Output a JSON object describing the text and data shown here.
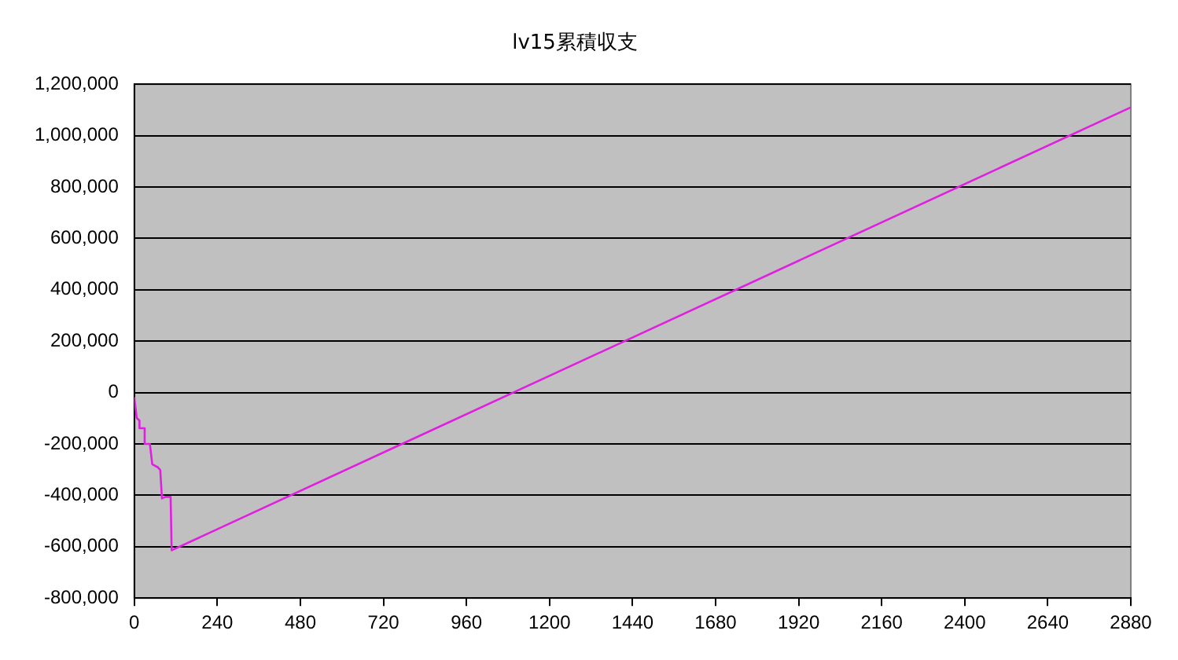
{
  "chart_data": {
    "type": "line",
    "title": "lv15累積収支",
    "series": [
      {
        "color": "#e020e0",
        "x": [
          0,
          7,
          15,
          15,
          30,
          30,
          45,
          52,
          68,
          75,
          80,
          90,
          105,
          108,
          2880
        ],
        "values": [
          -18000,
          -99000,
          -109000,
          -139000,
          -139000,
          -200000,
          -200000,
          -279000,
          -291000,
          -301000,
          -412000,
          -406000,
          -406000,
          -614000,
          1110000
        ]
      }
    ],
    "xlim": [
      0,
      2880
    ],
    "xticks": [
      0,
      240,
      480,
      720,
      960,
      1200,
      1440,
      1680,
      1920,
      2160,
      2400,
      2640,
      2880
    ],
    "ylim": [
      -800000,
      1200000
    ],
    "yticks": [
      {
        "value": -800000,
        "label": "-800,000"
      },
      {
        "value": -600000,
        "label": "-600,000"
      },
      {
        "value": -400000,
        "label": "-400,000"
      },
      {
        "value": -200000,
        "label": "-200,000"
      },
      0,
      {
        "value": 200000,
        "label": "200,000"
      },
      {
        "value": 400000,
        "label": "400,000"
      },
      {
        "value": 600000,
        "label": "600,000"
      },
      {
        "value": 800000,
        "label": "800,000"
      },
      {
        "value": 1000000,
        "label": "1,000,000"
      },
      {
        "value": 1200000,
        "label": "1,200,000"
      }
    ],
    "grid": "y",
    "legend": false,
    "marker": "none",
    "line_style": "solid"
  }
}
